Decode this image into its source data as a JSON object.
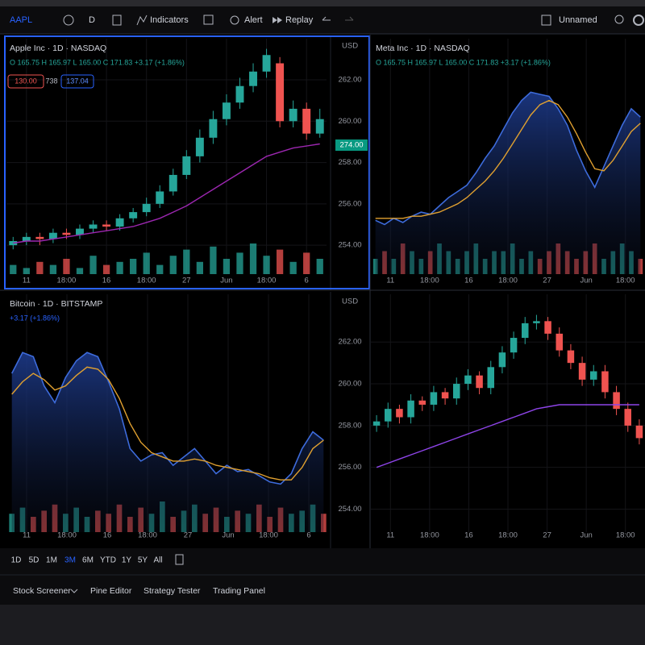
{
  "toolbar": {
    "symbol": "AAPL",
    "interval": "D",
    "items": [
      "Indicators",
      "Alert",
      "Replay"
    ],
    "layout": "Unnamed"
  },
  "panes": [
    {
      "type": "candlestick",
      "title": "Apple Inc · 1D · NASDAQ",
      "ohlc": "O 165.75 H 165.97 L 165.00 C 171.83 +3.17 (+1.86%)",
      "badges": [
        "130.00",
        "738",
        "137.04"
      ],
      "currency": "USD",
      "price_tag": "274.00",
      "ylim": [
        252.6,
        263.6
      ],
      "yticks": [
        {
          "value": 262,
          "label": "262.00"
        },
        {
          "value": 260,
          "label": "260.00"
        },
        {
          "value": 258,
          "label": "258.00"
        },
        {
          "value": 256,
          "label": "256.00"
        },
        {
          "value": 254,
          "label": "254.00"
        }
      ],
      "xlabels": [
        "11",
        "18:00",
        "16",
        "18:00",
        "27",
        "Jun",
        "18:00",
        "6"
      ],
      "up_color": "#26a69a",
      "down_color": "#ef5350",
      "open": [
        254.0,
        254.2,
        254.4,
        254.3,
        254.6,
        254.5,
        254.8,
        255.0,
        254.9,
        255.3,
        255.6,
        256.0,
        256.6,
        257.4,
        258.3,
        259.2,
        260.1,
        260.9,
        261.7,
        262.4,
        262.8,
        260.0,
        260.6,
        259.4
      ],
      "high": [
        254.4,
        254.6,
        254.6,
        254.8,
        254.8,
        255.0,
        255.2,
        255.2,
        255.5,
        255.8,
        256.3,
        256.9,
        257.7,
        258.6,
        259.6,
        260.5,
        261.3,
        262.1,
        262.8,
        263.5,
        263.1,
        261.0,
        260.9,
        260.6
      ],
      "low": [
        253.8,
        254.0,
        254.0,
        254.1,
        254.3,
        254.3,
        254.6,
        254.7,
        254.7,
        255.1,
        255.4,
        255.8,
        256.4,
        257.2,
        258.0,
        258.9,
        259.8,
        260.6,
        261.4,
        262.1,
        259.7,
        259.7,
        259.1,
        259.2
      ],
      "close": [
        254.2,
        254.4,
        254.3,
        254.6,
        254.5,
        254.8,
        255.0,
        254.9,
        255.3,
        255.6,
        256.0,
        256.6,
        257.4,
        258.3,
        259.2,
        260.1,
        260.9,
        261.7,
        262.4,
        263.2,
        260.0,
        260.6,
        259.4,
        260.1
      ],
      "volume": [
        3,
        2,
        4,
        3,
        5,
        2,
        6,
        3,
        4,
        5,
        7,
        3,
        6,
        8,
        4,
        9,
        5,
        7,
        10,
        6,
        8,
        4,
        7,
        5
      ],
      "ma": {
        "color": "#9c27b0",
        "values": [
          254.1,
          254.2,
          254.2,
          254.3,
          254.4,
          254.5,
          254.6,
          254.7,
          254.8,
          254.9,
          255.1,
          255.3,
          255.6,
          255.9,
          256.3,
          256.7,
          257.1,
          257.5,
          257.9,
          258.3,
          258.5,
          258.7,
          258.8,
          258.9
        ]
      }
    },
    {
      "type": "area",
      "title": "Meta Inc · 1D · NASDAQ",
      "ohlc": "O 165.75 H 165.97 L 165.00 C 171.83 +3.17 (+1.86%)",
      "ylim": [
        252.6,
        263.6
      ],
      "xlabels": [
        "11",
        "18:00",
        "16",
        "18:00",
        "27",
        "Jun",
        "18:00"
      ],
      "line_color": "#3d6bdb",
      "up_color": "#26a69a",
      "down_color": "#ef5350",
      "values": [
        255.2,
        255.0,
        255.3,
        255.1,
        255.4,
        255.6,
        255.5,
        255.9,
        256.3,
        256.6,
        256.9,
        257.5,
        258.2,
        258.8,
        259.6,
        260.4,
        261.0,
        261.4,
        261.3,
        261.2,
        260.6,
        259.8,
        258.6,
        257.6,
        256.8,
        257.8,
        258.8,
        259.8,
        260.6,
        260.2
      ],
      "ma": {
        "color": "#e0a030",
        "values": [
          255.3,
          255.3,
          255.3,
          255.3,
          255.4,
          255.4,
          255.5,
          255.6,
          255.8,
          256.0,
          256.3,
          256.7,
          257.1,
          257.6,
          258.2,
          258.9,
          259.6,
          260.3,
          260.8,
          261.0,
          260.8,
          260.2,
          259.4,
          258.5,
          257.7,
          257.6,
          258.1,
          258.8,
          259.5,
          259.9
        ]
      },
      "volume": [
        2,
        3,
        2,
        4,
        3,
        2,
        3,
        4,
        3,
        2,
        3,
        4,
        2,
        3,
        3,
        4,
        2,
        3,
        2,
        3,
        4,
        3,
        2,
        3,
        4,
        2,
        3,
        4,
        3,
        2
      ]
    },
    {
      "type": "area",
      "title": "Bitcoin · 1D · BITSTAMP",
      "change": "+3.17 (+1.86%)",
      "ylim": [
        252.6,
        263.6
      ],
      "xlabels": [
        "11",
        "18:00",
        "16",
        "18:00",
        "27",
        "Jun",
        "18:00",
        "6"
      ],
      "line_color": "#3d6bdb",
      "up_color": "#26a69a",
      "down_color": "#ef5350",
      "values": [
        260.2,
        261.2,
        261.0,
        259.6,
        258.8,
        260.0,
        260.8,
        261.2,
        261.0,
        259.8,
        258.5,
        256.6,
        256.0,
        256.3,
        256.4,
        255.8,
        256.2,
        256.6,
        256.0,
        255.4,
        255.8,
        255.5,
        255.6,
        255.3,
        255.0,
        254.9,
        255.4,
        256.6,
        257.4,
        257.0
      ],
      "ma": {
        "color": "#e0a030",
        "values": [
          259.2,
          259.8,
          260.2,
          259.9,
          259.4,
          259.6,
          260.1,
          260.5,
          260.4,
          259.9,
          259.0,
          257.8,
          256.9,
          256.4,
          256.2,
          256.0,
          256.0,
          256.1,
          256.0,
          255.8,
          255.7,
          255.6,
          255.5,
          255.4,
          255.2,
          255.1,
          255.1,
          255.7,
          256.6,
          257.0
        ]
      },
      "volume": [
        6,
        8,
        5,
        7,
        9,
        6,
        8,
        5,
        7,
        6,
        9,
        5,
        8,
        6,
        10,
        5,
        7,
        9,
        6,
        8,
        5,
        7,
        6,
        9,
        5,
        8,
        6,
        7,
        9,
        6
      ]
    },
    {
      "type": "candlestick",
      "currency": "USD",
      "ylim": [
        252.9,
        263.9
      ],
      "yticks": [
        {
          "value": 262,
          "label": "262.00"
        },
        {
          "value": 260,
          "label": "260.00"
        },
        {
          "value": 258,
          "label": "258.00"
        },
        {
          "value": 256,
          "label": "256.00"
        },
        {
          "value": 254,
          "label": "254.00"
        }
      ],
      "xlabels": [
        "11",
        "18:00",
        "16",
        "18:00",
        "27",
        "Jun",
        "18:00"
      ],
      "up_color": "#26a69a",
      "down_color": "#ef5350",
      "open": [
        258.0,
        258.2,
        258.8,
        258.4,
        259.2,
        259.0,
        259.6,
        259.3,
        260.0,
        260.4,
        259.8,
        260.8,
        261.5,
        262.2,
        262.9,
        263.0,
        262.4,
        261.6,
        261.0,
        260.2,
        260.6,
        259.6,
        258.8,
        258.0
      ],
      "high": [
        258.5,
        259.1,
        259.0,
        259.5,
        259.4,
        259.9,
        259.8,
        260.3,
        260.7,
        260.6,
        261.1,
        261.8,
        262.5,
        263.2,
        263.3,
        263.2,
        262.7,
        261.9,
        261.3,
        260.9,
        260.9,
        259.9,
        259.1,
        258.3
      ],
      "low": [
        257.7,
        257.9,
        258.1,
        258.1,
        258.7,
        258.7,
        259.0,
        259.0,
        259.7,
        259.5,
        259.5,
        260.5,
        261.2,
        261.9,
        262.6,
        262.1,
        261.3,
        260.7,
        259.9,
        259.9,
        259.3,
        258.5,
        257.7,
        257.1
      ],
      "close": [
        258.2,
        258.8,
        258.4,
        259.2,
        259.0,
        259.6,
        259.3,
        260.0,
        260.4,
        259.8,
        260.8,
        261.5,
        262.2,
        262.9,
        263.0,
        262.4,
        261.6,
        261.0,
        260.2,
        260.6,
        259.6,
        258.8,
        258.0,
        257.4
      ],
      "ma": {
        "color": "#8e44e8",
        "values": [
          256.0,
          256.2,
          256.4,
          256.6,
          256.8,
          257.0,
          257.2,
          257.4,
          257.6,
          257.8,
          258.0,
          258.2,
          258.4,
          258.6,
          258.8,
          258.9,
          259.0,
          259.0,
          259.0,
          259.0,
          259.0,
          259.0,
          259.0,
          259.0
        ]
      }
    }
  ],
  "bottom_bar": {
    "ranges": [
      "1D",
      "5D",
      "1M",
      "3M",
      "6M",
      "YTD",
      "1Y",
      "5Y",
      "All"
    ],
    "active_range": "3M",
    "tabs": [
      "Stock Screener",
      "Pine Editor",
      "Strategy Tester",
      "Trading Panel"
    ]
  }
}
